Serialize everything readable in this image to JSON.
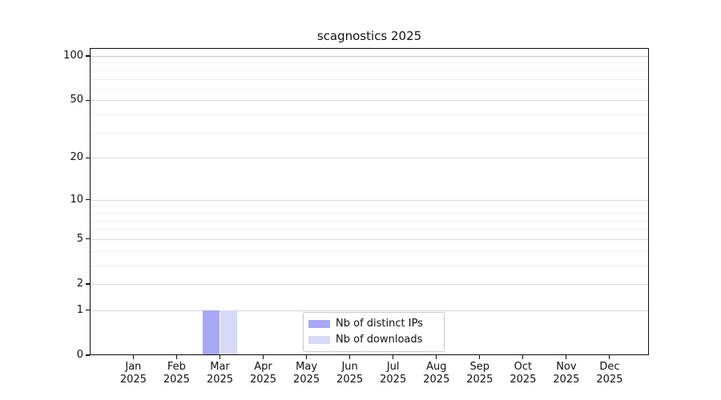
{
  "chart_data": {
    "type": "bar",
    "title": "scagnostics 2025",
    "x": {
      "months": [
        "Jan",
        "Feb",
        "Mar",
        "Apr",
        "May",
        "Jun",
        "Jul",
        "Aug",
        "Sep",
        "Oct",
        "Nov",
        "Dec"
      ],
      "year": "2025"
    },
    "series": [
      {
        "name": "Nb of distinct IPs",
        "color": "#a8a8f6",
        "values": [
          0,
          0,
          1,
          0,
          0,
          0,
          0,
          0,
          0,
          0,
          0,
          0
        ]
      },
      {
        "name": "Nb of downloads",
        "color": "#d8d8f8",
        "values": [
          0,
          0,
          1,
          0,
          0,
          0,
          0,
          0,
          0,
          0,
          0,
          0
        ]
      }
    ],
    "y_axis": {
      "scale": "log1p",
      "tick_values": [
        0,
        1,
        2,
        5,
        10,
        20,
        50,
        100
      ],
      "tick_labels": [
        "0",
        "1",
        "2",
        "5",
        "10",
        "20",
        "50",
        "100"
      ],
      "ylim": [
        0,
        113
      ]
    },
    "grid": {
      "major_values": [
        1,
        2,
        5,
        10,
        20,
        50,
        100
      ],
      "minor_values": [
        3,
        4,
        6,
        7,
        8,
        9,
        30,
        40,
        60,
        70,
        80,
        90
      ],
      "major_color": "#dbdbdb",
      "minor_color": "#f0f0f0",
      "emphasis": {
        "100": "#c6c6c6",
        "1": "#d4d4d4"
      }
    },
    "legend": {
      "position": "bottom-center",
      "entries": [
        "Nb of distinct IPs",
        "Nb of downloads"
      ]
    }
  }
}
